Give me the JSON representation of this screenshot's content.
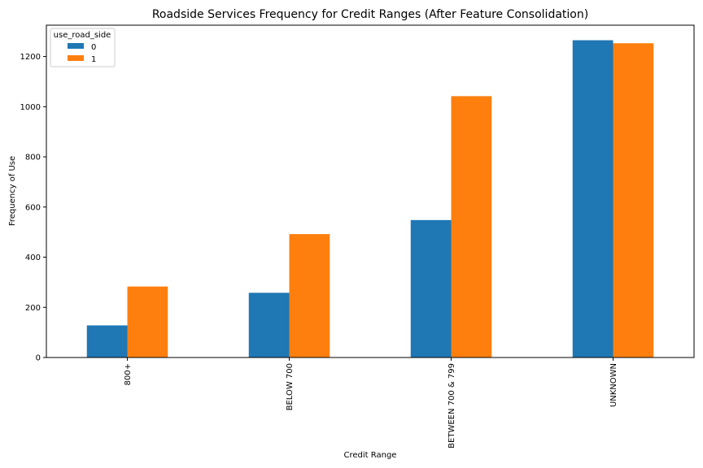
{
  "chart_data": {
    "type": "bar",
    "title": "Roadside Services Frequency for Credit Ranges (After Feature Consolidation)",
    "xlabel": "Credit Range",
    "ylabel": "Frequency of Use",
    "categories": [
      "800+",
      "BELOW 700",
      "BETWEEN 700 & 799",
      "UNKNOWN"
    ],
    "series": [
      {
        "name": "0",
        "values": [
          128,
          258,
          548,
          1265
        ],
        "color": "#1f77b4"
      },
      {
        "name": "1",
        "values": [
          283,
          492,
          1042,
          1253
        ],
        "color": "#ff7f0e"
      }
    ],
    "ylim": [
      0,
      1325
    ],
    "yticks": [
      0,
      200,
      400,
      600,
      800,
      1000,
      1200
    ],
    "legend": {
      "title": "use_road_side",
      "placement": "top-left"
    },
    "grid": false
  }
}
